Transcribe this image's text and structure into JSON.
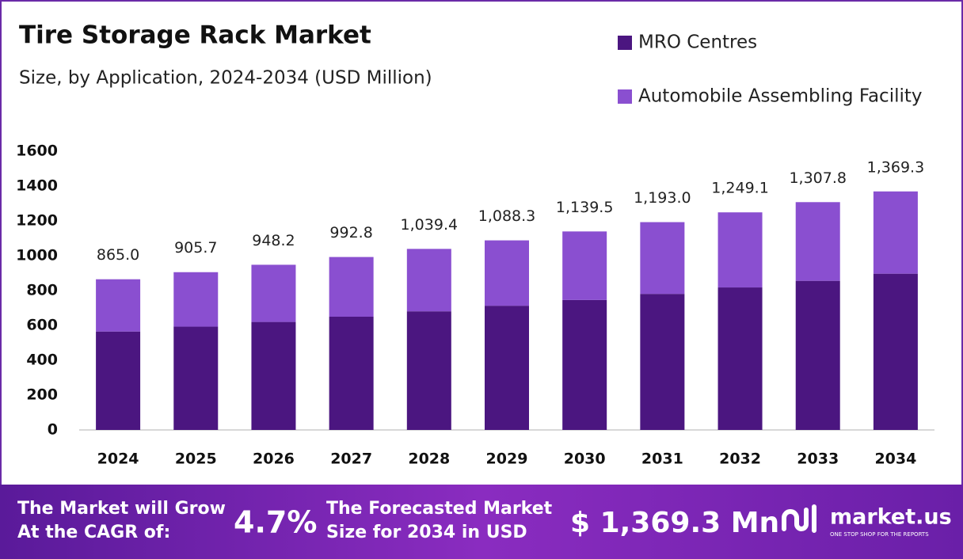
{
  "chart_data": {
    "type": "stacked_bar",
    "title": "Tire Storage Rack Market",
    "subtitle": "Size, by Application, 2024-2034 (USD Million)",
    "categories": [
      "2024",
      "2025",
      "2026",
      "2027",
      "2028",
      "2029",
      "2030",
      "2031",
      "2032",
      "2033",
      "2034"
    ],
    "series": [
      {
        "name": "MRO Centres",
        "color": "#4b1680",
        "values": [
          565,
          593,
          620,
          650,
          681,
          713,
          746,
          781,
          818,
          856,
          897
        ]
      },
      {
        "name": "Automobile Assembling Facility",
        "color": "#8a4fd0",
        "values": [
          300,
          312.7,
          328.2,
          342.8,
          358.4,
          375.3,
          393.5,
          412,
          431.1,
          451.8,
          472.3
        ]
      }
    ],
    "totals": {
      "values": [
        865.0,
        905.7,
        948.2,
        992.8,
        1039.4,
        1088.3,
        1139.5,
        1193.0,
        1249.1,
        1307.8,
        1369.3
      ],
      "value_labels": [
        "865.0",
        "905.7",
        "948.2",
        "992.8",
        "1,039.4",
        "1,088.3",
        "1,139.5",
        "1,193.0",
        "1,249.1",
        "1,307.8",
        "1,369.3"
      ]
    },
    "ylim": [
      0,
      1600
    ],
    "yticks": [
      0,
      200,
      400,
      600,
      800,
      1000,
      1200,
      1400,
      1600
    ],
    "grid": false,
    "legend": "top-right"
  },
  "footer": {
    "cagr_text_1": "The Market will Grow",
    "cagr_text_2": "At the CAGR of:",
    "cagr": "4.7%",
    "forecast_text_1": "The Forecasted Market",
    "forecast_text_2": "Size for 2034 in USD",
    "forecast": "$ 1,369.3 Mn",
    "brand": "market.us",
    "tagline": "ONE STOP SHOP FOR THE REPORTS"
  }
}
